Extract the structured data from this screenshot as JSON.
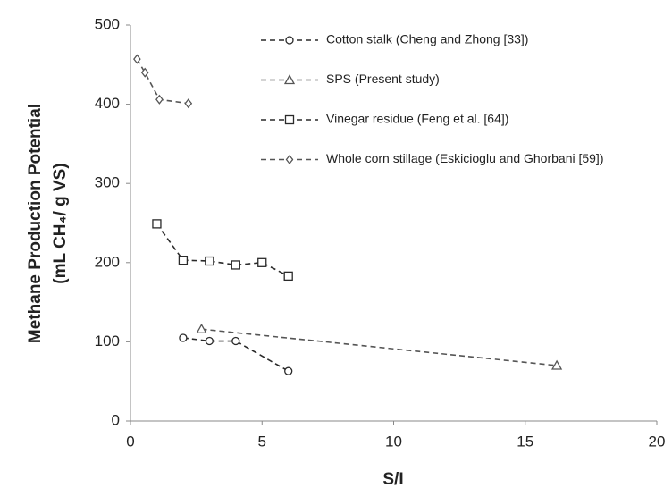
{
  "chart_data": {
    "type": "line",
    "x_label": "S/I",
    "y_label": [
      "Methane Production Potential",
      "(mL CH₄/ g VS)"
    ],
    "xlim": [
      0,
      20
    ],
    "xticks": [
      0,
      5,
      10,
      15,
      20
    ],
    "ylim": [
      0,
      500
    ],
    "yticks": [
      0,
      100,
      200,
      300,
      400,
      500
    ],
    "grid": false,
    "legend": "top-right",
    "series": [
      {
        "name": "Cotton stalk (Cheng and Zhong [33])",
        "color": "#2a2a2a",
        "marker": "circle",
        "x": [
          2,
          3,
          4,
          6
        ],
        "values": [
          105,
          101,
          101,
          63
        ]
      },
      {
        "name": "SPS (Present study)",
        "color": "#555555",
        "marker": "triangle",
        "x": [
          2.7,
          16.2
        ],
        "values": [
          116,
          70
        ]
      },
      {
        "name": "Vinegar residue (Feng et al. [64])",
        "color": "#2a2a2a",
        "marker": "square",
        "x": [
          1,
          2,
          3,
          4,
          5,
          6
        ],
        "values": [
          249,
          203,
          202,
          197,
          200,
          183
        ]
      },
      {
        "name": "Whole corn stillage (Eskicioglu and Ghorbani [59])",
        "color": "#555555",
        "marker": "diamond",
        "x": [
          0.25,
          0.55,
          1.1,
          2.2
        ],
        "values": [
          457,
          440,
          406,
          401
        ]
      }
    ]
  }
}
